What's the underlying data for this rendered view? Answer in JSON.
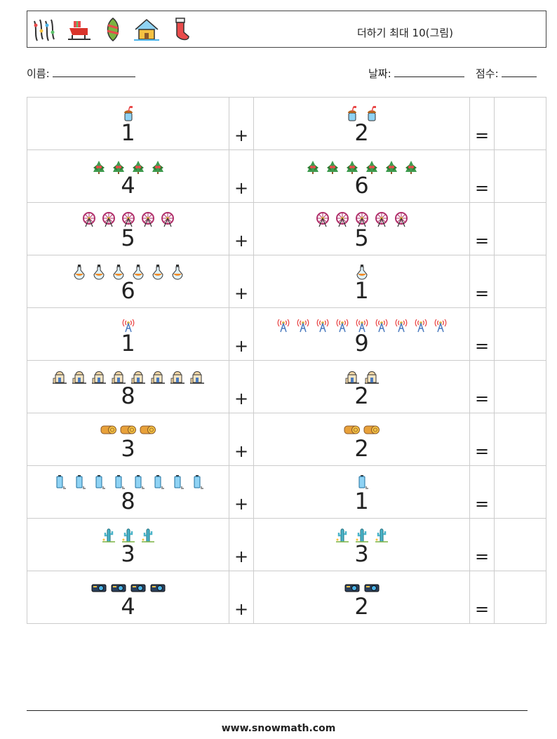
{
  "header": {
    "title": "더하기 최대 10(그림)",
    "icons": [
      "garland-lights-icon",
      "sleigh-icon",
      "ornament-icon",
      "snowy-house-icon",
      "stocking-icon"
    ]
  },
  "meta": {
    "name_label": "이름:",
    "date_label": "날짜:",
    "score_label": "점수:"
  },
  "operators": {
    "plus": "+",
    "equals": "="
  },
  "rows": [
    {
      "a": "1",
      "a_icon": "drink-icon",
      "a_count": 1,
      "b": "2",
      "b_icon": "drink-icon",
      "b_count": 2
    },
    {
      "a": "4",
      "a_icon": "holly-icon",
      "a_count": 4,
      "b": "6",
      "b_icon": "holly-icon",
      "b_count": 6
    },
    {
      "a": "5",
      "a_icon": "ferris-wheel-icon",
      "a_count": 5,
      "b": "5",
      "b_icon": "ferris-wheel-icon",
      "b_count": 5
    },
    {
      "a": "6",
      "a_icon": "potion-flask-icon",
      "a_count": 6,
      "b": "1",
      "b_icon": "potion-flask-icon",
      "b_count": 1
    },
    {
      "a": "1",
      "a_icon": "radio-tower-icon",
      "a_count": 1,
      "b": "9",
      "b_icon": "radio-tower-icon",
      "b_count": 9
    },
    {
      "a": "8",
      "a_icon": "temple-icon",
      "a_count": 8,
      "b": "2",
      "b_icon": "temple-icon",
      "b_count": 2
    },
    {
      "a": "3",
      "a_icon": "log-wood-icon",
      "a_count": 3,
      "b": "2",
      "b_icon": "log-wood-icon",
      "b_count": 2
    },
    {
      "a": "8",
      "a_icon": "battery-icon",
      "a_count": 8,
      "b": "1",
      "b_icon": "battery-icon",
      "b_count": 1
    },
    {
      "a": "3",
      "a_icon": "cactus-icon",
      "a_count": 3,
      "b": "3",
      "b_icon": "cactus-icon",
      "b_count": 3
    },
    {
      "a": "4",
      "a_icon": "projector-icon",
      "a_count": 4,
      "b": "2",
      "b_icon": "projector-icon",
      "b_count": 2
    }
  ],
  "footer": {
    "url": "www.snowmath.com"
  }
}
